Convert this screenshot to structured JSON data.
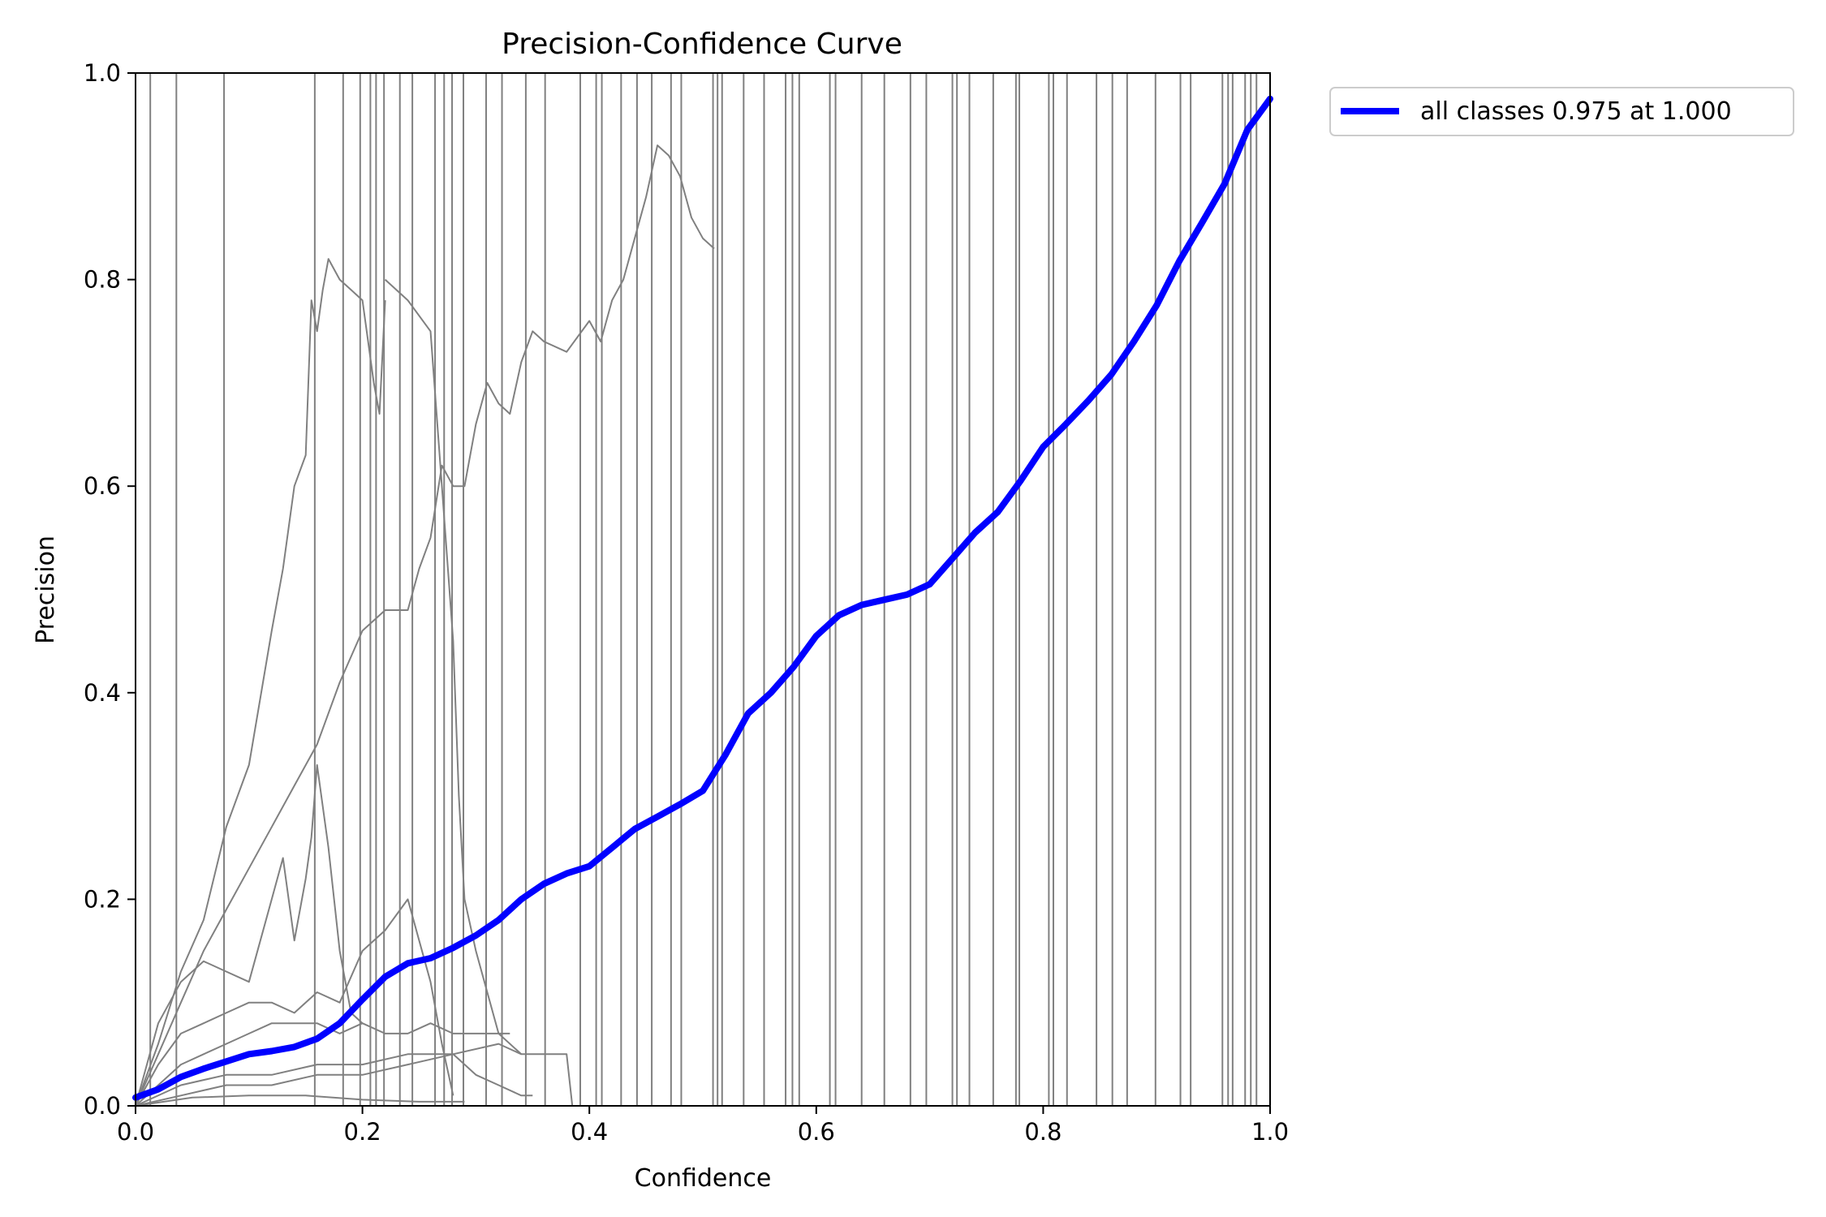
{
  "chart_data": {
    "type": "line",
    "title": "Precision-Confidence Curve",
    "xlabel": "Confidence",
    "ylabel": "Precision",
    "xlim": [
      0,
      1
    ],
    "ylim": [
      0,
      1
    ],
    "xticks": [
      0.0,
      0.2,
      0.4,
      0.6,
      0.8,
      1.0
    ],
    "yticks": [
      0.0,
      0.2,
      0.4,
      0.6,
      0.8,
      1.0
    ],
    "xtick_labels": [
      "0.0",
      "0.2",
      "0.4",
      "0.6",
      "0.8",
      "1.0"
    ],
    "ytick_labels": [
      "0.0",
      "0.2",
      "0.4",
      "0.6",
      "0.8",
      "1.0"
    ],
    "grid": false,
    "legend_position": "outside-top-right",
    "colors": {
      "summary": "#0000ff",
      "class": "#808080"
    },
    "summary_series": {
      "name": "all classes 0.975 at 1.000",
      "x": [
        0.0,
        0.02,
        0.04,
        0.06,
        0.08,
        0.1,
        0.12,
        0.14,
        0.16,
        0.18,
        0.2,
        0.22,
        0.24,
        0.26,
        0.28,
        0.3,
        0.32,
        0.34,
        0.36,
        0.38,
        0.4,
        0.42,
        0.44,
        0.46,
        0.48,
        0.5,
        0.52,
        0.54,
        0.56,
        0.58,
        0.6,
        0.62,
        0.64,
        0.66,
        0.68,
        0.7,
        0.72,
        0.74,
        0.76,
        0.78,
        0.8,
        0.82,
        0.84,
        0.86,
        0.88,
        0.9,
        0.92,
        0.94,
        0.96,
        0.98,
        1.0
      ],
      "y": [
        0.008,
        0.016,
        0.028,
        0.036,
        0.043,
        0.05,
        0.053,
        0.057,
        0.065,
        0.08,
        0.103,
        0.125,
        0.138,
        0.143,
        0.153,
        0.165,
        0.18,
        0.2,
        0.215,
        0.225,
        0.232,
        0.25,
        0.268,
        0.28,
        0.292,
        0.305,
        0.34,
        0.38,
        0.4,
        0.425,
        0.455,
        0.475,
        0.485,
        0.49,
        0.495,
        0.505,
        0.53,
        0.555,
        0.575,
        0.605,
        0.638,
        0.66,
        0.683,
        0.708,
        0.74,
        0.775,
        0.818,
        0.855,
        0.893,
        0.945,
        0.975
      ]
    },
    "class_series": [
      {
        "x": [
          0.0,
          0.02,
          0.04,
          0.06,
          0.08,
          0.1,
          0.12,
          0.13,
          0.14,
          0.15,
          0.155,
          0.16,
          0.165,
          0.17,
          0.18,
          0.19,
          0.2,
          0.21,
          0.215,
          0.22
        ],
        "y": [
          0.0,
          0.06,
          0.13,
          0.18,
          0.27,
          0.33,
          0.46,
          0.52,
          0.6,
          0.63,
          0.78,
          0.75,
          0.79,
          0.82,
          0.8,
          0.79,
          0.78,
          0.7,
          0.67,
          0.78
        ]
      },
      {
        "x": [
          0.22,
          0.24,
          0.26,
          0.27,
          0.28,
          0.285,
          0.29,
          0.3,
          0.32,
          0.34
        ],
        "y": [
          0.8,
          0.78,
          0.75,
          0.6,
          0.45,
          0.3,
          0.2,
          0.15,
          0.07,
          0.05
        ]
      },
      {
        "x": [
          0.0,
          0.02,
          0.04,
          0.06,
          0.08,
          0.1,
          0.12,
          0.14,
          0.16,
          0.18,
          0.2,
          0.22,
          0.24,
          0.25,
          0.26,
          0.27,
          0.28,
          0.29,
          0.3,
          0.31,
          0.32,
          0.33,
          0.34,
          0.35,
          0.36,
          0.38,
          0.4,
          0.41,
          0.42,
          0.43,
          0.44,
          0.45,
          0.46,
          0.47,
          0.48,
          0.49,
          0.5,
          0.51
        ],
        "y": [
          0.0,
          0.05,
          0.1,
          0.15,
          0.19,
          0.23,
          0.27,
          0.31,
          0.35,
          0.41,
          0.46,
          0.48,
          0.48,
          0.52,
          0.55,
          0.62,
          0.6,
          0.6,
          0.66,
          0.7,
          0.68,
          0.67,
          0.72,
          0.75,
          0.74,
          0.73,
          0.76,
          0.74,
          0.78,
          0.8,
          0.84,
          0.88,
          0.93,
          0.92,
          0.9,
          0.86,
          0.84,
          0.83
        ]
      },
      {
        "x": [
          0.0,
          0.02,
          0.04,
          0.06,
          0.08,
          0.1,
          0.12,
          0.13,
          0.14,
          0.15,
          0.155,
          0.16,
          0.17,
          0.18,
          0.19,
          0.2
        ],
        "y": [
          0.0,
          0.08,
          0.12,
          0.14,
          0.13,
          0.12,
          0.2,
          0.24,
          0.16,
          0.22,
          0.26,
          0.33,
          0.25,
          0.15,
          0.09,
          0.08
        ]
      },
      {
        "x": [
          0.0,
          0.02,
          0.04,
          0.06,
          0.08,
          0.1,
          0.12,
          0.14,
          0.16,
          0.18,
          0.2,
          0.22,
          0.24,
          0.25,
          0.26,
          0.27,
          0.28
        ],
        "y": [
          0.0,
          0.04,
          0.07,
          0.08,
          0.09,
          0.1,
          0.1,
          0.09,
          0.11,
          0.1,
          0.15,
          0.17,
          0.2,
          0.16,
          0.12,
          0.06,
          0.01
        ]
      },
      {
        "x": [
          0.0,
          0.02,
          0.04,
          0.06,
          0.08,
          0.1,
          0.12,
          0.14,
          0.16,
          0.18,
          0.2,
          0.22,
          0.24,
          0.26,
          0.28,
          0.3,
          0.32,
          0.33
        ],
        "y": [
          0.0,
          0.02,
          0.04,
          0.05,
          0.06,
          0.07,
          0.08,
          0.08,
          0.08,
          0.07,
          0.08,
          0.07,
          0.07,
          0.08,
          0.07,
          0.07,
          0.07,
          0.07
        ]
      },
      {
        "x": [
          0.0,
          0.04,
          0.08,
          0.12,
          0.16,
          0.2,
          0.24,
          0.28,
          0.32,
          0.34,
          0.36,
          0.38,
          0.385
        ],
        "y": [
          0.0,
          0.02,
          0.03,
          0.03,
          0.04,
          0.04,
          0.05,
          0.05,
          0.06,
          0.05,
          0.05,
          0.05,
          0.0
        ]
      },
      {
        "x": [
          0.0,
          0.04,
          0.08,
          0.12,
          0.16,
          0.2,
          0.24,
          0.28,
          0.3,
          0.32,
          0.34,
          0.35
        ],
        "y": [
          0.0,
          0.01,
          0.02,
          0.02,
          0.03,
          0.03,
          0.04,
          0.05,
          0.03,
          0.02,
          0.01,
          0.01
        ]
      },
      {
        "x": [
          0.0,
          0.05,
          0.1,
          0.15,
          0.2,
          0.25,
          0.29
        ],
        "y": [
          0.0,
          0.008,
          0.01,
          0.01,
          0.006,
          0.004,
          0.004
        ]
      }
    ],
    "vertical_lines_x": [
      0.013,
      0.036,
      0.078,
      0.158,
      0.183,
      0.198,
      0.207,
      0.212,
      0.219,
      0.233,
      0.244,
      0.264,
      0.272,
      0.279,
      0.289,
      0.309,
      0.323,
      0.344,
      0.361,
      0.392,
      0.406,
      0.411,
      0.428,
      0.442,
      0.455,
      0.472,
      0.481,
      0.509,
      0.513,
      0.517,
      0.536,
      0.554,
      0.573,
      0.579,
      0.585,
      0.612,
      0.617,
      0.64,
      0.66,
      0.683,
      0.697,
      0.72,
      0.724,
      0.735,
      0.756,
      0.776,
      0.779,
      0.805,
      0.809,
      0.821,
      0.847,
      0.861,
      0.874,
      0.899,
      0.921,
      0.93,
      0.958,
      0.963,
      0.967,
      0.978,
      0.983,
      0.988
    ]
  }
}
